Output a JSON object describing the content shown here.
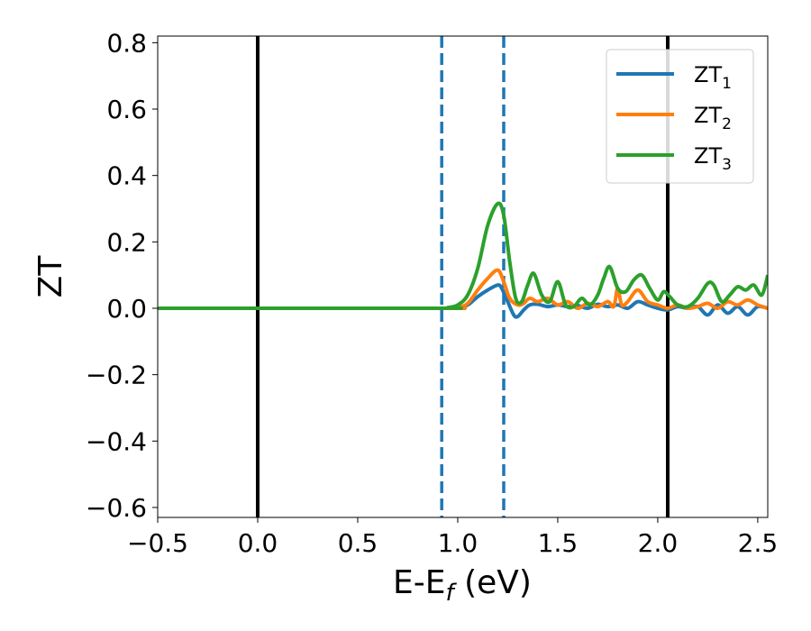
{
  "chart_data": {
    "type": "line",
    "title": "",
    "xlabel": {
      "base": "E-E",
      "sub": "f",
      "rest": " (eV)"
    },
    "ylabel": "ZT",
    "xlim": [
      -0.5,
      2.55
    ],
    "ylim": [
      -0.63,
      0.82
    ],
    "xticks": [
      -0.5,
      0.0,
      0.5,
      1.0,
      1.5,
      2.0,
      2.5
    ],
    "xtick_labels": [
      "−0.5",
      "0.0",
      "0.5",
      "1.0",
      "1.5",
      "2.0",
      "2.5"
    ],
    "yticks": [
      -0.6,
      -0.4,
      -0.2,
      0.0,
      0.2,
      0.4,
      0.6,
      0.8
    ],
    "ytick_labels": [
      "−0.6",
      "−0.4",
      "−0.2",
      "0.0",
      "0.2",
      "0.4",
      "0.6",
      "0.8"
    ],
    "grid": false,
    "legend_position": "top-right",
    "vlines": [
      {
        "x": 0.0,
        "style": "solid",
        "color": "#000000"
      },
      {
        "x": 2.05,
        "style": "solid",
        "color": "#000000"
      },
      {
        "x": 0.92,
        "style": "dashed",
        "color": "#1f77b4"
      },
      {
        "x": 1.23,
        "style": "dashed",
        "color": "#1f77b4"
      }
    ],
    "series": [
      {
        "name": "ZT",
        "name_sub": "1",
        "color": "#1f77b4",
        "x": [
          -0.5,
          0.9,
          1.0,
          1.05,
          1.1,
          1.15,
          1.2,
          1.22,
          1.25,
          1.28,
          1.3,
          1.33,
          1.36,
          1.4,
          1.45,
          1.5,
          1.55,
          1.6,
          1.65,
          1.7,
          1.75,
          1.8,
          1.85,
          1.9,
          1.95,
          2.0,
          2.05,
          2.1,
          2.15,
          2.2,
          2.25,
          2.3,
          2.35,
          2.4,
          2.45,
          2.5,
          2.55
        ],
        "y": [
          0.0,
          0.0,
          0.002,
          0.01,
          0.035,
          0.055,
          0.07,
          0.06,
          0.02,
          -0.02,
          -0.025,
          -0.005,
          0.01,
          0.012,
          0.005,
          0.01,
          0.005,
          0.008,
          0.0,
          0.012,
          0.005,
          0.01,
          0.0,
          0.02,
          0.01,
          0.0,
          -0.005,
          0.005,
          0.0,
          0.005,
          -0.02,
          0.01,
          -0.015,
          0.005,
          -0.02,
          0.005,
          0.0
        ]
      },
      {
        "name": "ZT",
        "name_sub": "2",
        "color": "#ff7f0e",
        "x": [
          -0.5,
          0.9,
          1.0,
          1.05,
          1.1,
          1.15,
          1.2,
          1.23,
          1.26,
          1.3,
          1.33,
          1.36,
          1.4,
          1.45,
          1.5,
          1.55,
          1.6,
          1.65,
          1.7,
          1.75,
          1.78,
          1.8,
          1.82,
          1.85,
          1.9,
          1.95,
          2.0,
          2.05,
          2.1,
          2.15,
          2.2,
          2.25,
          2.3,
          2.35,
          2.4,
          2.45,
          2.5,
          2.55
        ],
        "y": [
          0.0,
          0.0,
          0.003,
          0.015,
          0.055,
          0.09,
          0.115,
          0.08,
          0.03,
          0.01,
          0.015,
          0.03,
          0.02,
          0.03,
          0.01,
          0.02,
          0.0,
          0.015,
          0.005,
          0.02,
          0.005,
          0.06,
          0.01,
          0.02,
          0.055,
          0.02,
          0.01,
          0.0,
          0.01,
          0.0,
          0.005,
          0.015,
          0.0,
          0.02,
          0.01,
          0.025,
          0.01,
          0.0
        ]
      },
      {
        "name": "ZT",
        "name_sub": "3",
        "color": "#2ca02c",
        "x": [
          -0.5,
          0.9,
          0.95,
          1.0,
          1.05,
          1.1,
          1.15,
          1.2,
          1.23,
          1.26,
          1.29,
          1.32,
          1.35,
          1.38,
          1.42,
          1.46,
          1.5,
          1.54,
          1.58,
          1.62,
          1.66,
          1.7,
          1.73,
          1.76,
          1.8,
          1.84,
          1.88,
          1.92,
          1.96,
          2.0,
          2.03,
          2.06,
          2.1,
          2.15,
          2.2,
          2.25,
          2.28,
          2.32,
          2.36,
          2.4,
          2.44,
          2.48,
          2.52,
          2.55
        ],
        "y": [
          0.0,
          0.0,
          0.002,
          0.01,
          0.04,
          0.12,
          0.25,
          0.315,
          0.28,
          0.14,
          0.03,
          0.02,
          0.07,
          0.105,
          0.04,
          0.02,
          0.08,
          0.01,
          0.005,
          0.03,
          0.01,
          0.04,
          0.09,
          0.125,
          0.06,
          0.05,
          0.085,
          0.1,
          0.06,
          0.025,
          0.05,
          0.035,
          0.01,
          0.005,
          0.03,
          0.075,
          0.07,
          0.02,
          0.04,
          0.065,
          0.055,
          0.07,
          0.04,
          0.1
        ]
      }
    ]
  }
}
